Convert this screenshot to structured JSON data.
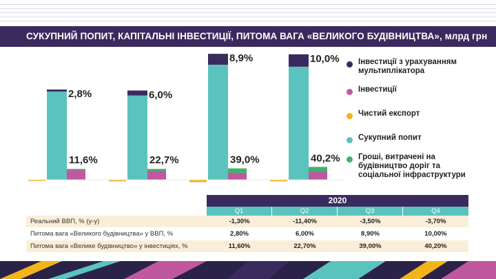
{
  "title": "СУКУПНИЙ ПОПИТ, КАПІТАЛЬНІ ІНВЕСТИЦІЇ, ПИТОМА ВАГА «ВЕЛИКОГО БУДІВНИЦТВА», млрд грн",
  "colors": {
    "investments_multiplier": "#3b2a5e",
    "investments": "#c0589f",
    "net_export": "#f2b41a",
    "aggregate_demand": "#5bc3bd",
    "roads": "#3fb36e"
  },
  "chart_data": {
    "type": "bar",
    "title": "СУКУПНИЙ ПОПИТ, КАПІТАЛЬНІ ІНВЕСТИЦІЇ, ПИТОМА ВАГА «ВЕЛИКОГО БУДІВНИЦТВА», млрд грн",
    "categories": [
      "Q1",
      "Q2",
      "Q3",
      "Q4"
    ],
    "series": [
      {
        "name": "Інвестиції з урахуванням мультиплікатора",
        "values": [
          4,
          10,
          22,
          25
        ]
      },
      {
        "name": "Інвестиції",
        "values": [
          20,
          18,
          14,
          16
        ]
      },
      {
        "name": "Чистий експорт",
        "values": [
          -3,
          -4,
          -6,
          -4
        ]
      },
      {
        "name": "Сукупний попит",
        "values": [
          178,
          170,
          232,
          228
        ]
      },
      {
        "name": "Гроші, витрачені на будівництво доріг та соціальної інфраструктури",
        "values": [
          2,
          4,
          9,
          10
        ]
      }
    ],
    "labels_upper": [
      "2,8%",
      "6,0%",
      "8,9%",
      "10,0%"
    ],
    "labels_lower": [
      "11,6%",
      "22,7%",
      "39,0%",
      "40,2%"
    ],
    "legend_position": "right",
    "grid": false
  },
  "legend": [
    {
      "label": "Інвестиції з урахуванням мультиплікатора",
      "color": "#3b2a5e"
    },
    {
      "label": "Інвестиції",
      "color": "#c0589f"
    },
    {
      "label": "Чистий експорт",
      "color": "#f2b41a"
    },
    {
      "label": "Сукупний попит",
      "color": "#5bc3bd"
    },
    {
      "label": "Гроші, витрачені на будівництво доріг та соціальної інфраструктури",
      "color": "#3fb36e"
    }
  ],
  "table": {
    "year": "2020",
    "quarters": [
      "Q1",
      "Q2",
      "Q3",
      "Q4"
    ],
    "rows": [
      {
        "label": "Реальний ВВП, % (у-у)",
        "values": [
          "-1,30%",
          "-11,40%",
          "-3,50%",
          "-3,70%"
        ]
      },
      {
        "label": "Питома вага «Великого будівництва» у ВВП, %",
        "values": [
          "2,80%",
          "6,00%",
          "8,90%",
          "10,00%"
        ]
      },
      {
        "label": "Питома вага «Велике будівництво» у інвестиціях, %",
        "values": [
          "11,60%",
          "22,70%",
          "39,00%",
          "40,20%"
        ]
      }
    ]
  }
}
